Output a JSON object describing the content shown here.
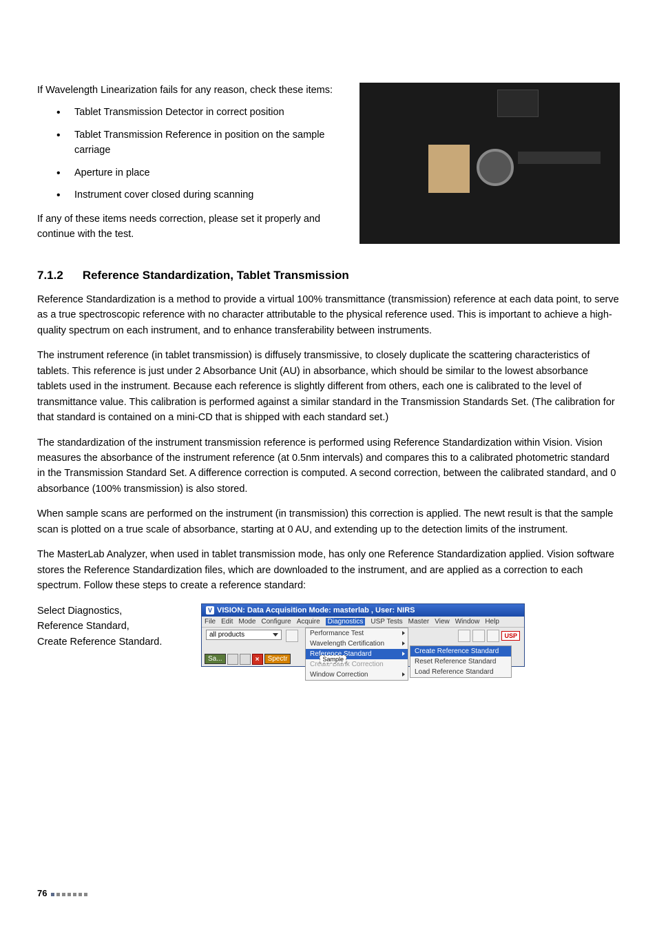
{
  "intro": {
    "p1": "If Wavelength Linearization fails for any reason, check these items:",
    "bullets": [
      "Tablet Transmission Detector in correct position",
      "Tablet Transmission Reference in position on the sample carriage",
      "Aperture in place",
      "Instrument cover closed during scanning"
    ],
    "p2": "If any of these items needs correction, please set it properly and continue with the test."
  },
  "section": {
    "num": "7.1.2",
    "title": "Reference Standardization, Tablet Transmission"
  },
  "paras": {
    "p1": "Reference Standardization is a method to provide a virtual 100% transmittance (transmission) reference at each data point, to serve as a true spectroscopic reference with no character attributable to the physical reference used. This is important to achieve a high-quality spectrum on each instrument, and to enhance transferability between instruments.",
    "p2": "The instrument reference (in tablet transmission) is diffusely transmissive, to closely duplicate the scattering characteristics of tablets. This reference is just under 2 Absorbance Unit (AU) in absorbance, which should be similar to the lowest absorbance tablets used in the instrument. Because each reference is slightly different from others, each one is calibrated to the level of transmittance value. This calibration is performed against a similar standard in the Transmission Standards Set. (The calibration for that standard is contained on a mini-CD that is shipped with each standard set.)",
    "p3": "The standardization of the instrument transmission reference is performed using Reference Standardization within Vision. Vision measures the absorbance of the instrument reference (at 0.5nm intervals) and compares this to a calibrated photometric standard in the Transmission Standard Set. A difference correction is computed. A second correction, between the calibrated standard, and 0 absorbance (100% transmission) is also stored.",
    "p4": "When sample scans are performed on the instrument (in transmission) this correction is applied. The newt result is that the sample scan is plotted on a true scale of absorbance, starting at 0 AU, and extending up to the detection limits of the instrument.",
    "p5": "The MasterLab Analyzer, when used in tablet transmission mode, has only one Reference Standardization applied. Vision software stores the Reference Standardization files, which are downloaded to the instrument, and are applied as a correction to each spectrum. Follow these steps to create a reference standard:"
  },
  "steps": {
    "l1": "Select Diagnostics,",
    "l2": "Reference Standard,",
    "l3": "Create Reference Standard."
  },
  "screenshot": {
    "title": "VISION: Data Acquisition Mode: masterlab , User: NIRS",
    "menus": [
      "File",
      "Edit",
      "Mode",
      "Configure",
      "Acquire",
      "Diagnostics",
      "USP Tests",
      "Master",
      "View",
      "Window",
      "Help"
    ],
    "combo": "all products",
    "dropdown": [
      {
        "label": "Performance Test",
        "arrow": true
      },
      {
        "label": "Wavelength Certification",
        "arrow": true
      },
      {
        "label": "Reference Standard",
        "hl": true,
        "arrow": true
      },
      {
        "label": "Create Blank Correction",
        "dis": true
      },
      {
        "label": "Window Correction",
        "arrow": true
      }
    ],
    "submenu": [
      {
        "label": "Create Reference Standard",
        "hl": true
      },
      {
        "label": "Reset Reference Standard"
      },
      {
        "label": "Load Reference Standard"
      }
    ],
    "usp": "USP",
    "subtab_sa": "Sa...",
    "subtab_spectr": "Spectr",
    "subtab_sample": "Sample"
  },
  "footer": {
    "page": "76"
  }
}
